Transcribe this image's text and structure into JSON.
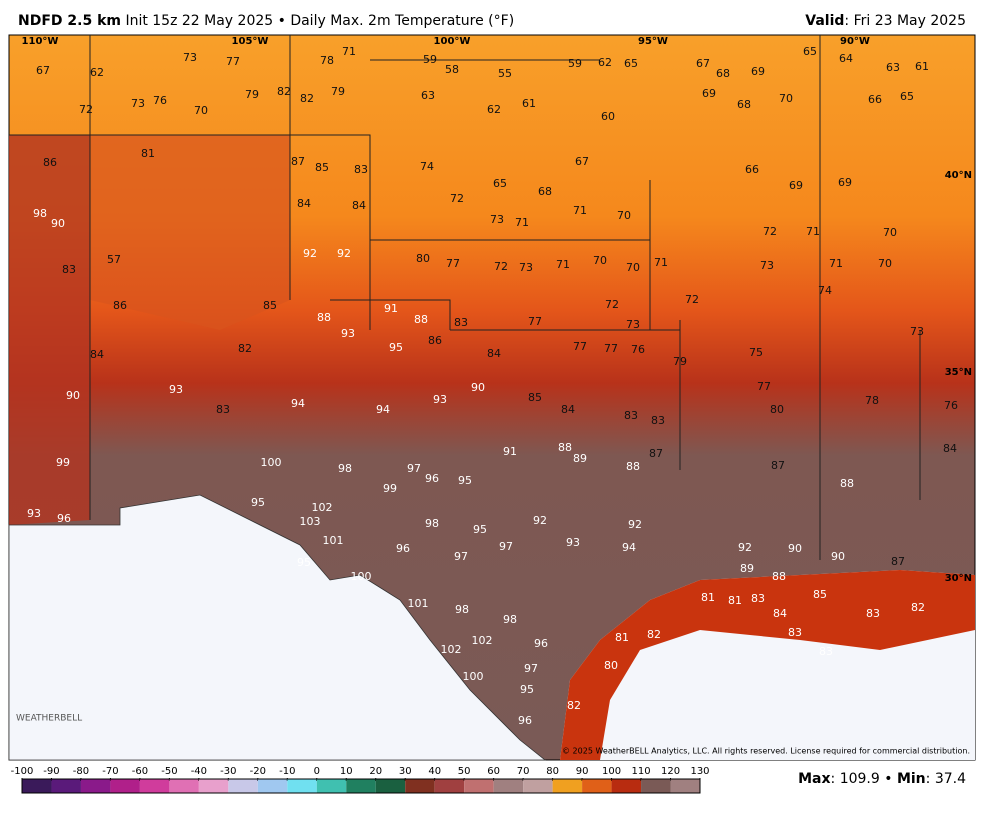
{
  "header": {
    "model": "NDFD 2.5 km",
    "description": "Init 15z 22 May 2025 • Daily Max. 2m Temperature (°F)",
    "valid_label": "Valid",
    "valid_date": ": Fri 23 May 2025"
  },
  "map": {
    "longitudes": [
      "110°W",
      "105°W",
      "100°W",
      "95°W",
      "90°W"
    ],
    "latitudes": [
      "40°N",
      "35°N",
      "30°N"
    ],
    "labels": [
      67,
      62,
      73,
      77,
      78,
      71,
      59,
      58,
      55,
      59,
      62,
      65,
      67,
      68,
      69,
      65,
      64,
      63,
      61,
      72,
      73,
      76,
      70,
      79,
      82,
      82,
      79,
      63,
      62,
      61,
      60,
      69,
      68,
      70,
      66,
      65,
      86,
      81,
      87,
      85,
      83,
      74,
      65,
      68,
      67,
      66,
      69,
      69,
      98,
      90,
      84,
      84,
      72,
      73,
      71,
      71,
      70,
      72,
      71,
      70,
      83,
      57,
      92,
      92,
      80,
      77,
      72,
      73,
      71,
      70,
      70,
      71,
      73,
      71,
      70,
      86,
      85,
      88,
      91,
      88,
      83,
      77,
      72,
      73,
      72,
      75,
      74,
      73,
      84,
      82,
      93,
      95,
      86,
      84,
      77,
      77,
      76,
      79,
      90,
      93,
      83,
      94,
      94,
      93,
      90,
      85,
      84,
      83,
      83,
      77,
      80,
      78,
      76,
      99,
      100,
      98,
      99,
      97,
      96,
      95,
      91,
      88,
      89,
      88,
      87,
      87,
      88,
      84,
      93,
      96,
      95,
      102,
      103,
      98,
      95,
      92,
      92,
      92,
      90,
      90,
      87,
      101,
      95,
      96,
      97,
      97,
      93,
      94,
      89,
      88,
      85,
      83,
      100,
      101,
      98,
      98,
      96,
      82,
      81,
      81,
      83,
      84,
      83,
      83,
      102,
      102,
      100,
      97,
      95,
      96,
      82,
      80,
      81,
      82
    ],
    "logo": "WEATHERBELL",
    "copyright": "© 2025 WeatherBELL Analytics, LLC. All rights reserved. License required for commercial distribution."
  },
  "colorbar": {
    "ticks": [
      -100,
      -90,
      -80,
      -70,
      -60,
      -50,
      -40,
      -30,
      -20,
      -10,
      0,
      10,
      20,
      30,
      40,
      50,
      60,
      70,
      80,
      90,
      100,
      110,
      120,
      130
    ]
  },
  "footer": {
    "max_label": "Max",
    "max_value": ": 109.9 • ",
    "min_label": "Min",
    "min_value": ": 37.4"
  }
}
